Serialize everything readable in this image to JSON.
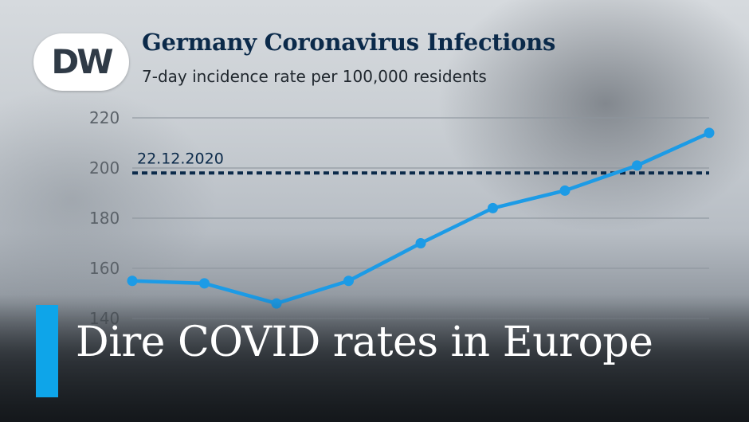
{
  "brand": {
    "logo_text": "DW"
  },
  "banner": {
    "headline": "Dire COVID rates in Europe",
    "accent_color": "#0ea5e9"
  },
  "chart_data": {
    "type": "line",
    "title": "Germany Coronavirus Infections",
    "subtitle": "7-day incidence rate per 100,000 residents",
    "ylim": [
      140,
      220
    ],
    "yticks": [
      140,
      160,
      180,
      200,
      220
    ],
    "grid": true,
    "series": [
      {
        "values": [
          155,
          154,
          146,
          155,
          170,
          184,
          191,
          201,
          214
        ],
        "color": "#1c9be6"
      }
    ],
    "annotations": [
      {
        "type": "hline",
        "y": 198,
        "label": "22.12.2020",
        "style": "dashed",
        "color": "#0b2a4a"
      }
    ]
  }
}
